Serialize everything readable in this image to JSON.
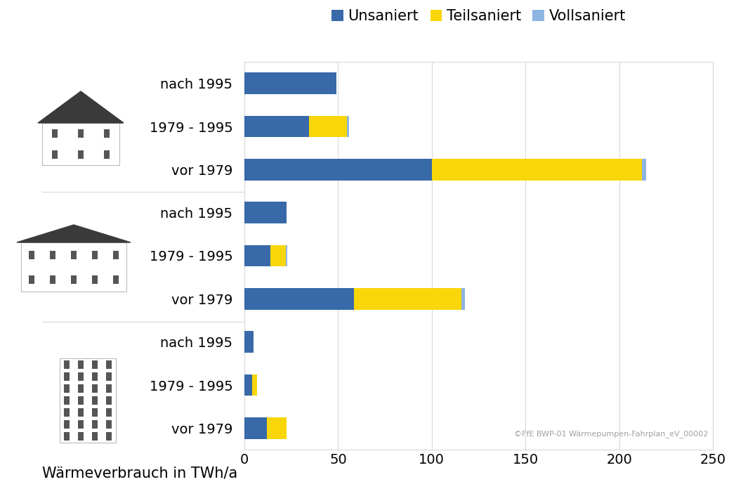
{
  "chart_data": {
    "type": "bar",
    "orientation": "horizontal",
    "stacked": true,
    "categories": [
      "nach 1995",
      "1979 - 1995",
      "vor 1979",
      "nach 1995",
      "1979 - 1995",
      "vor 1979",
      "nach 1995",
      "1979 - 1995",
      "vor 1979"
    ],
    "series": [
      {
        "name": "Unsaniert",
        "color": "#3869a8",
        "values": [
          49,
          34.4,
          100,
          22.6,
          13.7,
          58.5,
          4.8,
          4.1,
          11.9
        ]
      },
      {
        "name": "Teilsaniert",
        "color": "#f8d60a",
        "values": [
          0,
          20.4,
          112,
          0,
          8.5,
          57.4,
          0,
          2.6,
          10.7
        ]
      },
      {
        "name": "Vollsaniert",
        "color": "#8db4e2",
        "values": [
          0,
          1.1,
          2.5,
          0,
          0.7,
          1.9,
          0,
          0,
          0
        ]
      }
    ],
    "xlabel": "Wärmeverbrauch in TWh/a",
    "xlim": [
      0,
      250
    ],
    "xticks": [
      0,
      50,
      100,
      150,
      200,
      250
    ],
    "grid": true,
    "legend": "upper center",
    "annotations": [
      "©FfE BWP-01 Wärmepumpen-Fahrplan_eV_00002"
    ]
  }
}
